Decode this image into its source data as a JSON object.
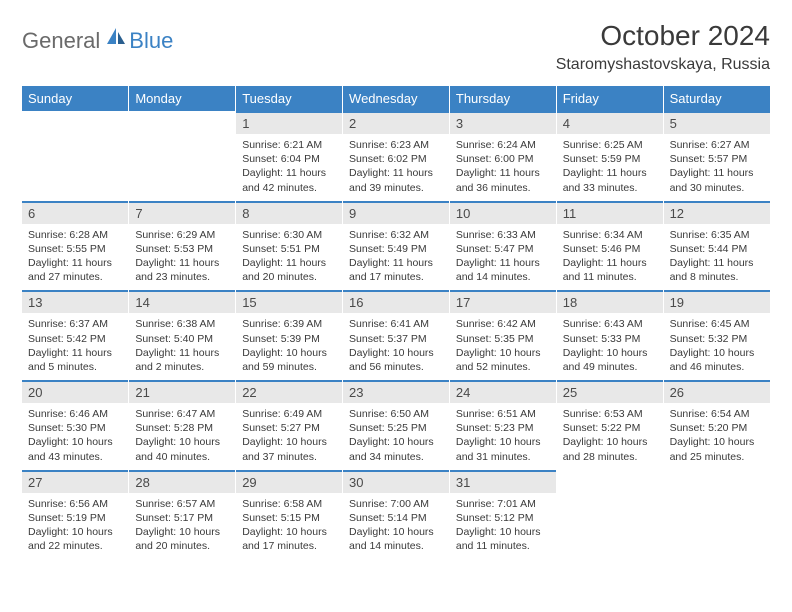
{
  "logo": {
    "general": "General",
    "blue": "Blue"
  },
  "title": "October 2024",
  "location": "Staromyshastovskaya, Russia",
  "colors": {
    "header_bg": "#3b82c4",
    "header_text": "#ffffff",
    "daynum_bg": "#e8e8e8",
    "daynum_border": "#3b82c4",
    "body_text": "#3a3a3a",
    "logo_gray": "#6a6a6a",
    "logo_blue": "#3b82c4"
  },
  "weekdays": [
    "Sunday",
    "Monday",
    "Tuesday",
    "Wednesday",
    "Thursday",
    "Friday",
    "Saturday"
  ],
  "weeks": [
    [
      null,
      null,
      {
        "n": "1",
        "sr": "6:21 AM",
        "ss": "6:04 PM",
        "dl": "11 hours and 42 minutes."
      },
      {
        "n": "2",
        "sr": "6:23 AM",
        "ss": "6:02 PM",
        "dl": "11 hours and 39 minutes."
      },
      {
        "n": "3",
        "sr": "6:24 AM",
        "ss": "6:00 PM",
        "dl": "11 hours and 36 minutes."
      },
      {
        "n": "4",
        "sr": "6:25 AM",
        "ss": "5:59 PM",
        "dl": "11 hours and 33 minutes."
      },
      {
        "n": "5",
        "sr": "6:27 AM",
        "ss": "5:57 PM",
        "dl": "11 hours and 30 minutes."
      }
    ],
    [
      {
        "n": "6",
        "sr": "6:28 AM",
        "ss": "5:55 PM",
        "dl": "11 hours and 27 minutes."
      },
      {
        "n": "7",
        "sr": "6:29 AM",
        "ss": "5:53 PM",
        "dl": "11 hours and 23 minutes."
      },
      {
        "n": "8",
        "sr": "6:30 AM",
        "ss": "5:51 PM",
        "dl": "11 hours and 20 minutes."
      },
      {
        "n": "9",
        "sr": "6:32 AM",
        "ss": "5:49 PM",
        "dl": "11 hours and 17 minutes."
      },
      {
        "n": "10",
        "sr": "6:33 AM",
        "ss": "5:47 PM",
        "dl": "11 hours and 14 minutes."
      },
      {
        "n": "11",
        "sr": "6:34 AM",
        "ss": "5:46 PM",
        "dl": "11 hours and 11 minutes."
      },
      {
        "n": "12",
        "sr": "6:35 AM",
        "ss": "5:44 PM",
        "dl": "11 hours and 8 minutes."
      }
    ],
    [
      {
        "n": "13",
        "sr": "6:37 AM",
        "ss": "5:42 PM",
        "dl": "11 hours and 5 minutes."
      },
      {
        "n": "14",
        "sr": "6:38 AM",
        "ss": "5:40 PM",
        "dl": "11 hours and 2 minutes."
      },
      {
        "n": "15",
        "sr": "6:39 AM",
        "ss": "5:39 PM",
        "dl": "10 hours and 59 minutes."
      },
      {
        "n": "16",
        "sr": "6:41 AM",
        "ss": "5:37 PM",
        "dl": "10 hours and 56 minutes."
      },
      {
        "n": "17",
        "sr": "6:42 AM",
        "ss": "5:35 PM",
        "dl": "10 hours and 52 minutes."
      },
      {
        "n": "18",
        "sr": "6:43 AM",
        "ss": "5:33 PM",
        "dl": "10 hours and 49 minutes."
      },
      {
        "n": "19",
        "sr": "6:45 AM",
        "ss": "5:32 PM",
        "dl": "10 hours and 46 minutes."
      }
    ],
    [
      {
        "n": "20",
        "sr": "6:46 AM",
        "ss": "5:30 PM",
        "dl": "10 hours and 43 minutes."
      },
      {
        "n": "21",
        "sr": "6:47 AM",
        "ss": "5:28 PM",
        "dl": "10 hours and 40 minutes."
      },
      {
        "n": "22",
        "sr": "6:49 AM",
        "ss": "5:27 PM",
        "dl": "10 hours and 37 minutes."
      },
      {
        "n": "23",
        "sr": "6:50 AM",
        "ss": "5:25 PM",
        "dl": "10 hours and 34 minutes."
      },
      {
        "n": "24",
        "sr": "6:51 AM",
        "ss": "5:23 PM",
        "dl": "10 hours and 31 minutes."
      },
      {
        "n": "25",
        "sr": "6:53 AM",
        "ss": "5:22 PM",
        "dl": "10 hours and 28 minutes."
      },
      {
        "n": "26",
        "sr": "6:54 AM",
        "ss": "5:20 PM",
        "dl": "10 hours and 25 minutes."
      }
    ],
    [
      {
        "n": "27",
        "sr": "6:56 AM",
        "ss": "5:19 PM",
        "dl": "10 hours and 22 minutes."
      },
      {
        "n": "28",
        "sr": "6:57 AM",
        "ss": "5:17 PM",
        "dl": "10 hours and 20 minutes."
      },
      {
        "n": "29",
        "sr": "6:58 AM",
        "ss": "5:15 PM",
        "dl": "10 hours and 17 minutes."
      },
      {
        "n": "30",
        "sr": "7:00 AM",
        "ss": "5:14 PM",
        "dl": "10 hours and 14 minutes."
      },
      {
        "n": "31",
        "sr": "7:01 AM",
        "ss": "5:12 PM",
        "dl": "10 hours and 11 minutes."
      },
      null,
      null
    ]
  ],
  "labels": {
    "sunrise": "Sunrise:",
    "sunset": "Sunset:",
    "daylight": "Daylight:"
  }
}
